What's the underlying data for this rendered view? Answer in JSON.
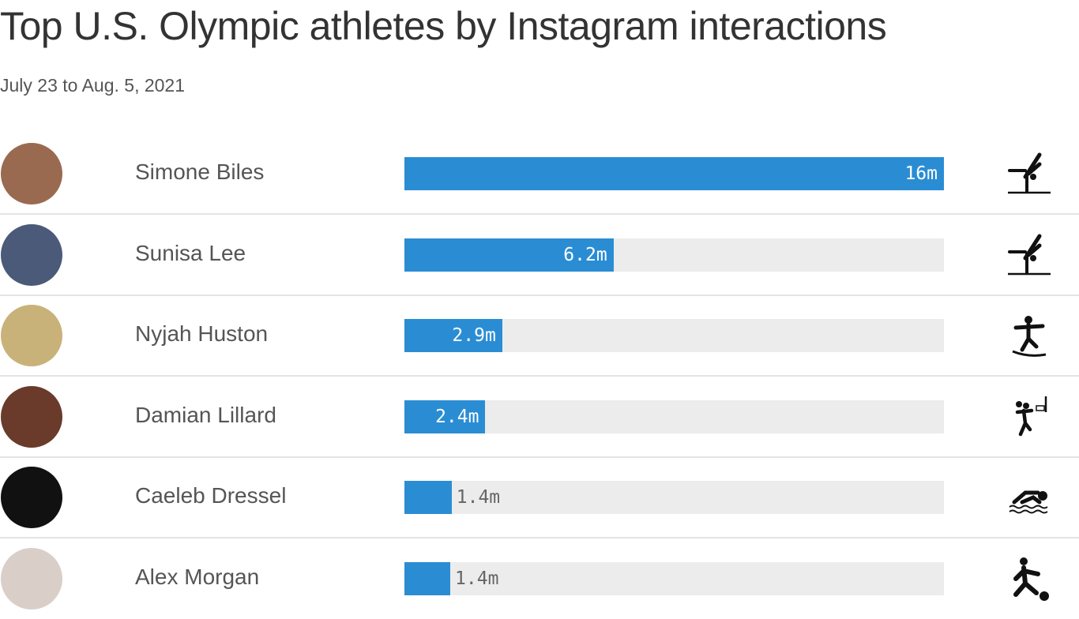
{
  "header": {
    "title": "Top U.S. Olympic athletes by Instagram interactions",
    "subtitle": "July 23 to Aug. 5, 2021"
  },
  "colors": {
    "bar": "#2a8dd4",
    "track": "#ececec"
  },
  "chart_data": {
    "type": "bar",
    "orientation": "horizontal",
    "title": "Top U.S. Olympic athletes by Instagram interactions",
    "subtitle": "July 23 to Aug. 5, 2021",
    "xlim": [
      0,
      16
    ],
    "grid": false,
    "categories": [
      "Simone Biles",
      "Sunisa Lee",
      "Nyjah Huston",
      "Damian Lillard",
      "Caeleb Dressel",
      "Alex Morgan"
    ],
    "values": [
      16,
      6.2,
      2.9,
      2.4,
      1.4,
      1.36
    ],
    "labels": [
      "16m",
      "6.2m",
      "2.9m",
      "2.4m",
      "1.4m",
      "1.4m"
    ],
    "icons": [
      "gymnastics-icon",
      "gymnastics-icon",
      "skateboarding-icon",
      "basketball-icon",
      "swimming-icon",
      "soccer-icon"
    ],
    "avatar_colors": [
      "#9a6a50",
      "#4a5a78",
      "#c9b27a",
      "#6a3a2a",
      "#111111",
      "#d9cfc8"
    ]
  }
}
